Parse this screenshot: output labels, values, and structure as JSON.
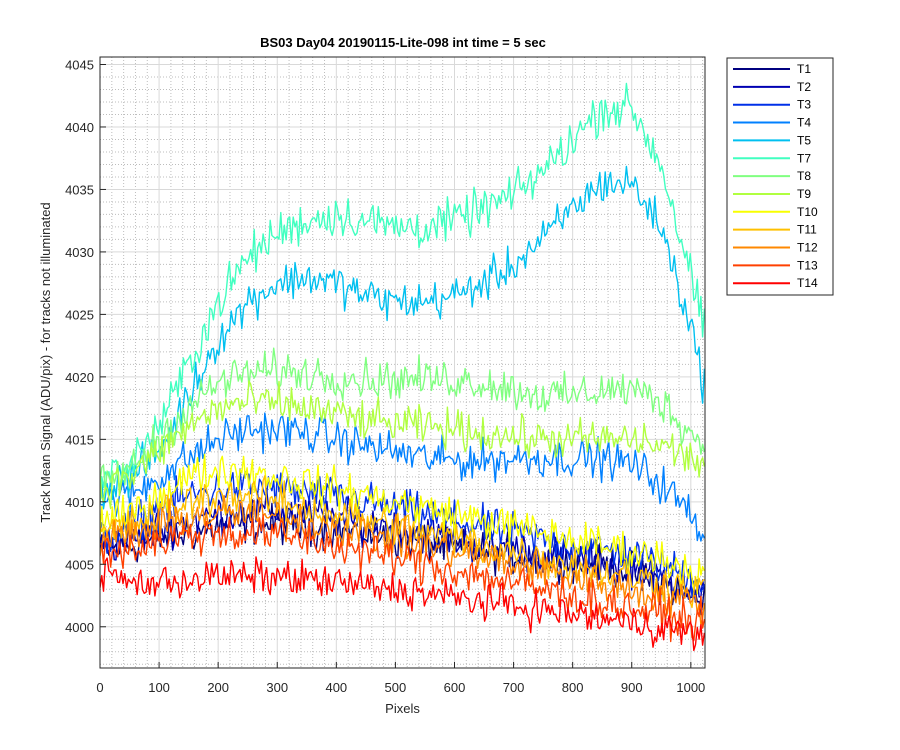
{
  "chart_data": {
    "type": "line",
    "title": "BS03 Day04 20190115-Lite-098 int time = 5 sec",
    "xlabel": "Pixels",
    "ylabel": "Track Mean Signal (ADU/pix) - for tracks not illuminated",
    "xlim": [
      0,
      1024
    ],
    "ylim": [
      3996.7,
      4045.6
    ],
    "x_ticks": [
      0,
      100,
      200,
      300,
      400,
      500,
      600,
      700,
      800,
      900,
      1000
    ],
    "y_ticks": [
      4000,
      4005,
      4010,
      4015,
      4020,
      4025,
      4030,
      4035,
      4040,
      4045
    ],
    "grid": "major and minor",
    "legend_position": "outside-right-top",
    "x": [
      0,
      50,
      100,
      150,
      200,
      250,
      300,
      350,
      400,
      450,
      500,
      550,
      600,
      650,
      700,
      750,
      800,
      850,
      900,
      950,
      1000,
      1024
    ],
    "series": [
      {
        "name": "T1",
        "color": "#00007f",
        "noise": 1.1,
        "values": [
          4006,
          4006.5,
          4007,
          4007.5,
          4008,
          4008.2,
          4008.2,
          4008,
          4007.8,
          4007.5,
          4007,
          4006.7,
          4006.3,
          4006,
          4005.8,
          4005.5,
          4005.2,
          4005,
          4004.5,
          4003.5,
          4002.5,
          4002
        ]
      },
      {
        "name": "T2",
        "color": "#0000b2",
        "noise": 1.1,
        "values": [
          4006.5,
          4007,
          4007.8,
          4008.5,
          4009,
          4009.3,
          4009.2,
          4009,
          4008.7,
          4008.3,
          4008,
          4007.5,
          4007,
          4006.6,
          4006.2,
          4005.8,
          4005.5,
          4005.2,
          4004.8,
          4004,
          4003,
          4002.5
        ]
      },
      {
        "name": "T3",
        "color": "#0030e8",
        "noise": 1.1,
        "values": [
          4007,
          4008,
          4009.5,
          4010.5,
          4011,
          4011.3,
          4011,
          4010.7,
          4010.3,
          4010,
          4009.5,
          4009,
          4008.5,
          4008,
          4007.5,
          4007,
          4006.5,
          4006.2,
          4005.8,
          4005,
          4004,
          4003.5
        ]
      },
      {
        "name": "T4",
        "color": "#0080ff",
        "noise": 1.1,
        "values": [
          4010,
          4010.5,
          4012,
          4013.5,
          4015,
          4015.8,
          4015.8,
          4015.5,
          4015,
          4014.5,
          4014,
          4013.5,
          4013.3,
          4013.3,
          4013.5,
          4013.5,
          4013.5,
          4013.5,
          4013,
          4011.5,
          4009,
          4007.5
        ]
      },
      {
        "name": "T5",
        "color": "#00c0f0",
        "noise": 1.1,
        "values": [
          4011,
          4012,
          4014,
          4018.5,
          4023,
          4026,
          4027.5,
          4028,
          4027.5,
          4026.5,
          4026,
          4026,
          4026.5,
          4027.5,
          4029,
          4031,
          4033.5,
          4035.5,
          4035.5,
          4032,
          4024,
          4019
        ]
      },
      {
        "name": "T7",
        "color": "#40ffc0",
        "noise": 1.2,
        "values": [
          4011.5,
          4013,
          4016,
          4021,
          4026,
          4029.5,
          4031.5,
          4032.5,
          4033,
          4032.5,
          4032,
          4032,
          4032.5,
          4033.5,
          4034.5,
          4036.5,
          4039,
          4041.5,
          4041.5,
          4037,
          4028,
          4023.5
        ]
      },
      {
        "name": "T8",
        "color": "#80ff80",
        "noise": 1.1,
        "values": [
          4011.5,
          4012.5,
          4015,
          4017.5,
          4019.5,
          4020.3,
          4020.5,
          4020.3,
          4020,
          4019.8,
          4019.8,
          4019.8,
          4019.8,
          4019.5,
          4019,
          4018.5,
          4018.5,
          4019,
          4019,
          4018,
          4015.5,
          4014.5
        ]
      },
      {
        "name": "T9",
        "color": "#b0ff40",
        "noise": 1.1,
        "values": [
          4011,
          4012,
          4014,
          4016,
          4017.5,
          4018,
          4017.8,
          4017.5,
          4017,
          4016.5,
          4016.2,
          4016,
          4015.8,
          4015.5,
          4015.2,
          4015,
          4015,
          4015,
          4015,
          4014.5,
          4013.5,
          4013
        ]
      },
      {
        "name": "T10",
        "color": "#f8ff00",
        "noise": 1.1,
        "values": [
          4008,
          4009,
          4010.5,
          4012,
          4012.5,
          4012.5,
          4012,
          4011.5,
          4011,
          4010.5,
          4010,
          4009.5,
          4009,
          4008.5,
          4008,
          4007.5,
          4007,
          4006.5,
          4006,
          4005.5,
          4004.5,
          4004
        ]
      },
      {
        "name": "T11",
        "color": "#ffc000",
        "noise": 1.1,
        "values": [
          4007.5,
          4008,
          4009,
          4010,
          4010.5,
          4010.5,
          4010,
          4009.5,
          4009,
          4008.5,
          4008,
          4007.5,
          4007,
          4006.5,
          4006,
          4005.5,
          4005,
          4004.5,
          4004,
          4003.5,
          4003,
          4002.8
        ]
      },
      {
        "name": "T12",
        "color": "#ff8800",
        "noise": 1.1,
        "values": [
          4007,
          4007.3,
          4008,
          4008.8,
          4009,
          4009,
          4008.7,
          4008.3,
          4008,
          4007.5,
          4007,
          4006.5,
          4006,
          4005.5,
          4005,
          4004.5,
          4004,
          4003.5,
          4003,
          4002.5,
          4002,
          4001.8
        ]
      },
      {
        "name": "T13",
        "color": "#ff4000",
        "noise": 1.1,
        "values": [
          4006,
          4006.3,
          4006.8,
          4007.3,
          4007.5,
          4007.5,
          4007.3,
          4007,
          4006.5,
          4006,
          4005.5,
          4005,
          4004.5,
          4004,
          4003.5,
          4003,
          4002.5,
          4002,
          4001.5,
          4001,
          4000.5,
          4000.3
        ]
      },
      {
        "name": "T14",
        "color": "#ff0000",
        "noise": 1.0,
        "values": [
          4004.5,
          4003.5,
          4003.5,
          4003.8,
          4004,
          4004,
          4004,
          4003.8,
          4003.5,
          4003.2,
          4003,
          4002.7,
          4002.3,
          4002,
          4001.7,
          4001.3,
          4001,
          4000.6,
          4000.3,
          4000,
          3999.5,
          3999.3
        ]
      }
    ]
  }
}
